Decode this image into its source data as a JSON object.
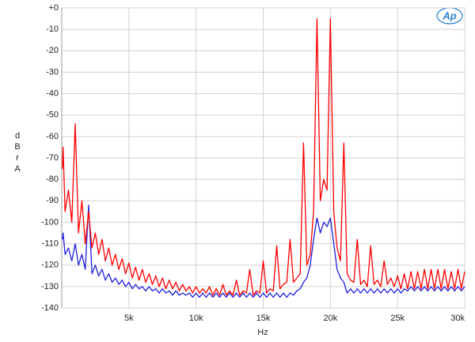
{
  "chart_data": {
    "type": "line",
    "ylabel": "dBr A",
    "xlabel": "Hz",
    "logo": "Ap",
    "xlim": [
      0,
      30000
    ],
    "ylim": [
      -140,
      0
    ],
    "xticks": [
      {
        "value": 5000,
        "label": "5k"
      },
      {
        "value": 10000,
        "label": "10k"
      },
      {
        "value": 15000,
        "label": "15k"
      },
      {
        "value": 20000,
        "label": "20k"
      },
      {
        "value": 25000,
        "label": "25k"
      },
      {
        "value": 30000,
        "label": "30k"
      }
    ],
    "yticks": [
      {
        "value": 0,
        "label": "+0"
      },
      -10,
      -20,
      -30,
      -40,
      -50,
      -60,
      -70,
      -80,
      -90,
      -100,
      -110,
      -120,
      -130,
      -140
    ],
    "grid": true,
    "x": [
      50,
      100,
      250,
      500,
      750,
      1000,
      1250,
      1500,
      1750,
      2000,
      2250,
      2500,
      2750,
      3000,
      3250,
      3500,
      3750,
      4000,
      4250,
      4500,
      4750,
      5000,
      5250,
      5500,
      5750,
      6000,
      6250,
      6500,
      6750,
      7000,
      7250,
      7500,
      7750,
      8000,
      8250,
      8500,
      8750,
      9000,
      9250,
      9500,
      9750,
      10000,
      10250,
      10500,
      10750,
      11000,
      11250,
      11500,
      11750,
      12000,
      12250,
      12500,
      12750,
      13000,
      13250,
      13500,
      13750,
      14000,
      14250,
      14500,
      14750,
      15000,
      15250,
      15500,
      15750,
      16000,
      16250,
      16500,
      16750,
      17000,
      17250,
      17500,
      17750,
      18000,
      18250,
      18500,
      18750,
      19000,
      19250,
      19500,
      19750,
      20000,
      20250,
      20500,
      20750,
      21000,
      21250,
      21500,
      21750,
      22000,
      22250,
      22500,
      22750,
      23000,
      23250,
      23500,
      23750,
      24000,
      24250,
      24500,
      24750,
      25000,
      25250,
      25500,
      25750,
      26000,
      26250,
      26500,
      26750,
      27000,
      27250,
      27500,
      27750,
      28000,
      28250,
      28500,
      28750,
      29000,
      29250,
      29500,
      29750,
      30000
    ],
    "series": [
      {
        "color": "#1f1fe0",
        "values": [
          -108,
          -105,
          -115,
          -112,
          -118,
          -110,
          -120,
          -115,
          -122,
          -92,
          -124,
          -120,
          -125,
          -122,
          -127,
          -124,
          -128,
          -126,
          -129,
          -127,
          -130,
          -128,
          -131,
          -129,
          -131,
          -130,
          -132,
          -130,
          -132,
          -131,
          -133,
          -131,
          -133,
          -132,
          -134,
          -132,
          -134,
          -133,
          -134,
          -133,
          -135,
          -133,
          -135,
          -133,
          -135,
          -133,
          -135,
          -133,
          -135,
          -133,
          -135,
          -133,
          -135,
          -133,
          -135,
          -133,
          -135,
          -133,
          -135,
          -133,
          -135,
          -133,
          -135,
          -133,
          -135,
          -133,
          -135,
          -133,
          -135,
          -133,
          -134,
          -132,
          -131,
          -128,
          -126,
          -120,
          -108,
          -98,
          -105,
          -100,
          -102,
          -98,
          -110,
          -122,
          -126,
          -128,
          -133,
          -131,
          -133,
          -131,
          -133,
          -131,
          -133,
          -131,
          -133,
          -131,
          -133,
          -131,
          -133,
          -131,
          -133,
          -131,
          -133,
          -131,
          -132,
          -130,
          -132,
          -130,
          -132,
          -130,
          -132,
          -130,
          -132,
          -130,
          -132,
          -130,
          -132,
          -130,
          -132,
          -130,
          -132,
          -130
        ]
      },
      {
        "color": "#ff0000",
        "values": [
          -75,
          -65,
          -95,
          -85,
          -100,
          -54,
          -105,
          -90,
          -110,
          -95,
          -112,
          -105,
          -115,
          -108,
          -118,
          -112,
          -120,
          -115,
          -122,
          -117,
          -124,
          -119,
          -126,
          -121,
          -127,
          -122,
          -128,
          -124,
          -129,
          -125,
          -130,
          -126,
          -131,
          -127,
          -131,
          -128,
          -132,
          -129,
          -132,
          -130,
          -133,
          -130,
          -133,
          -131,
          -133,
          -130,
          -134,
          -131,
          -134,
          -129,
          -134,
          -132,
          -134,
          -127,
          -134,
          -132,
          -133,
          -122,
          -134,
          -132,
          -133,
          -118,
          -133,
          -131,
          -132,
          -111,
          -131,
          -129,
          -128,
          -108,
          -128,
          -126,
          -124,
          -63,
          -120,
          -115,
          -95,
          -5,
          -90,
          -80,
          -85,
          -5,
          -95,
          -112,
          -118,
          -63,
          -124,
          -127,
          -128,
          -108,
          -129,
          -127,
          -130,
          -111,
          -129,
          -127,
          -130,
          -118,
          -129,
          -126,
          -130,
          -125,
          -131,
          -124,
          -131,
          -123,
          -131,
          -123,
          -131,
          -122,
          -131,
          -122,
          -131,
          -122,
          -131,
          -122,
          -131,
          -123,
          -131,
          -122,
          -131,
          -123
        ]
      }
    ]
  }
}
